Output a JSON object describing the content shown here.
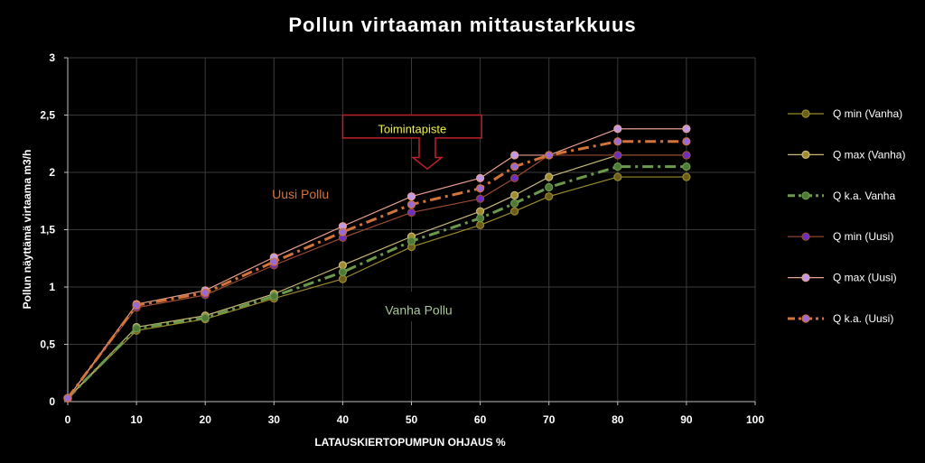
{
  "chart_data": {
    "type": "line",
    "title": "Pollun virtaaman mittaustarkkuus",
    "xlabel": "LATAUSKIERTOPUMPUN OHJAUS %",
    "ylabel": "Pollun näyttämä virtaama m3/h",
    "xlim": [
      0,
      100
    ],
    "ylim": [
      0,
      3
    ],
    "x_ticks": [
      0,
      10,
      20,
      30,
      40,
      50,
      60,
      70,
      80,
      90,
      100
    ],
    "y_ticks": [
      0,
      0.5,
      1,
      1.5,
      2,
      2.5,
      3
    ],
    "y_tick_labels": [
      "0",
      "0,5",
      "1",
      "1,5",
      "2",
      "2,5",
      "3"
    ],
    "grid": true,
    "legend_position": "right",
    "series": [
      {
        "name": "Q min (Vanha)",
        "color": "#9a8a2a",
        "marker": "#6b5e1a",
        "style": "solid",
        "width": 1.2,
        "x": [
          0,
          10,
          20,
          30,
          40,
          50,
          60,
          65,
          70,
          80,
          90
        ],
        "y": [
          0.03,
          0.62,
          0.72,
          0.9,
          1.07,
          1.35,
          1.54,
          1.66,
          1.79,
          1.96,
          1.96
        ]
      },
      {
        "name": "Q max (Vanha)",
        "color": "#c8b878",
        "marker": "#a08c30",
        "style": "solid",
        "width": 1.2,
        "x": [
          0,
          10,
          20,
          30,
          40,
          50,
          60,
          65,
          70,
          80,
          90
        ],
        "y": [
          0.03,
          0.65,
          0.75,
          0.94,
          1.19,
          1.44,
          1.66,
          1.8,
          1.96,
          2.15,
          2.15
        ]
      },
      {
        "name": "Q k.a. Vanha",
        "color": "#6c9a4c",
        "marker": "#4f7a36",
        "style": "dash",
        "width": 3,
        "x": [
          0,
          10,
          20,
          30,
          40,
          50,
          60,
          65,
          70,
          80,
          90
        ],
        "y": [
          0.03,
          0.64,
          0.73,
          0.92,
          1.13,
          1.4,
          1.6,
          1.73,
          1.87,
          2.05,
          2.05
        ]
      },
      {
        "name": "Q min (Uusi)",
        "color": "#9a4a30",
        "marker": "#6a2fc8",
        "style": "solid",
        "width": 1.2,
        "x": [
          0,
          10,
          20,
          30,
          40,
          50,
          60,
          65,
          70,
          80,
          90
        ],
        "y": [
          0.03,
          0.82,
          0.93,
          1.19,
          1.43,
          1.65,
          1.77,
          1.95,
          2.15,
          2.15,
          2.15
        ]
      },
      {
        "name": "Q max (Uusi)",
        "color": "#e8a090",
        "marker": "#c09ae8",
        "style": "solid",
        "width": 1.2,
        "x": [
          0,
          10,
          20,
          30,
          40,
          50,
          60,
          65,
          70,
          80,
          90
        ],
        "y": [
          0.03,
          0.85,
          0.97,
          1.26,
          1.53,
          1.79,
          1.95,
          2.15,
          2.15,
          2.38,
          2.38
        ]
      },
      {
        "name": "Q k.a. (Uusi)",
        "color": "#d2733a",
        "marker": "#9a6ad8",
        "style": "dash",
        "width": 3,
        "x": [
          0,
          10,
          20,
          30,
          40,
          50,
          60,
          65,
          70,
          80,
          90
        ],
        "y": [
          0.03,
          0.84,
          0.95,
          1.22,
          1.48,
          1.72,
          1.86,
          2.05,
          2.15,
          2.27,
          2.27
        ]
      }
    ],
    "annotations": {
      "uusi_label": "Uusi Pollu",
      "uusi_color": "#d2733a",
      "vanha_label": "Vanha Pollu",
      "vanha_color": "#a9c89a",
      "callout_label": "Toimintapiste",
      "callout_text_color": "#f0f050",
      "callout_border_color": "#c0202a"
    }
  }
}
